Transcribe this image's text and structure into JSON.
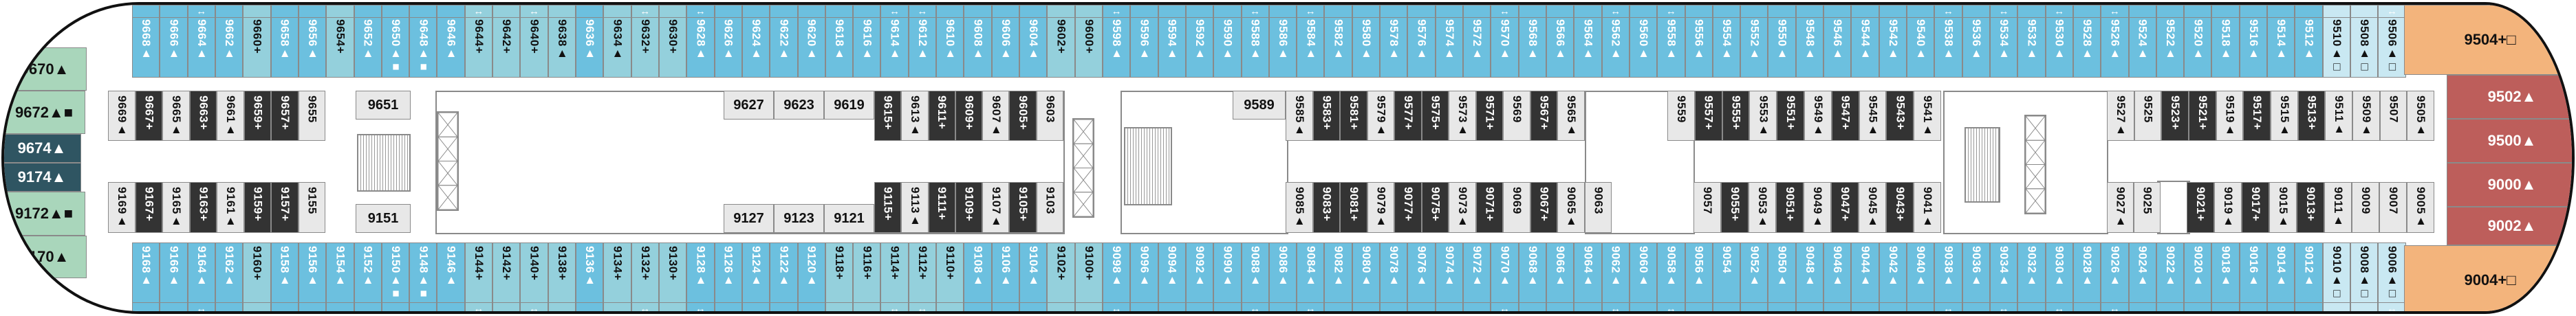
{
  "colors": {
    "balcony": "#6cc0df",
    "balcony_alt": "#94d0dc",
    "balcony_light": "#c9e8f2",
    "inside_dark": "#333333",
    "inside_light": "#e8e8e8",
    "bow_suite": "#a9d6bb",
    "bow_suite_dark": "#2f5562",
    "stern_suite": "#f3b47c",
    "stern_suite_red": "#bd5e5b"
  },
  "bow": [
    [
      "9670▲",
      "green"
    ],
    [
      "9672▲■",
      "green"
    ],
    [
      "9674▲",
      "dark"
    ],
    [
      "9174▲",
      "dark"
    ],
    [
      "9172▲■",
      "green"
    ],
    [
      "9170▲",
      "green"
    ]
  ],
  "stern": [
    [
      "9504+□",
      "orange"
    ],
    [
      "9502▲",
      "red"
    ],
    [
      "9500▲",
      "red"
    ],
    [
      "9000▲",
      "red"
    ],
    [
      "9002▲",
      "red"
    ],
    [
      "9004+□",
      "orange"
    ]
  ],
  "connector_symbol": "↔",
  "outer_top": [
    [
      "9668▲",
      "b"
    ],
    [
      "9666▲",
      "b"
    ],
    [
      "9664▲",
      "b",
      1
    ],
    [
      "9662▲",
      "b"
    ],
    [
      "9660+",
      "t"
    ],
    [
      "9658▲",
      "b"
    ],
    [
      "9656▲",
      "b"
    ],
    [
      "9654+",
      "t"
    ],
    [
      "9652▲",
      "b"
    ],
    [
      "9650▲■",
      "b"
    ],
    [
      "9648▲■",
      "b"
    ],
    [
      "9646▲",
      "b"
    ],
    [
      "9644+",
      "t",
      1
    ],
    [
      "9642+",
      "t"
    ],
    [
      "9640+",
      "t",
      1
    ],
    [
      "9638▲",
      "t"
    ],
    [
      "9636▲",
      "b"
    ],
    [
      "9634▲",
      "t"
    ],
    [
      "9632+",
      "t",
      1
    ],
    [
      "9630+",
      "t"
    ],
    [
      "9628▲",
      "b",
      1
    ],
    [
      "9626▲",
      "b"
    ],
    [
      "9624▲",
      "b"
    ],
    [
      "9622▲",
      "b"
    ],
    [
      "9620▲",
      "b"
    ],
    [
      "9618▲",
      "b"
    ],
    [
      "9616▲",
      "b"
    ],
    [
      "9614▲",
      "b",
      1
    ],
    [
      "9612▲",
      "b",
      1
    ],
    [
      "9610▲",
      "b"
    ],
    [
      "9608▲",
      "b"
    ],
    [
      "9606▲",
      "b"
    ],
    [
      "9604▲",
      "b"
    ],
    [
      "9602+",
      "t"
    ],
    [
      "9600+",
      "t"
    ],
    [
      "9598▲",
      "b",
      1
    ],
    [
      "9596▲",
      "b"
    ],
    [
      "9594▲",
      "b"
    ],
    [
      "9592▲",
      "b"
    ],
    [
      "9590▲",
      "b"
    ],
    [
      "9588▲",
      "b",
      1
    ],
    [
      "9586▲",
      "b"
    ],
    [
      "9584▲",
      "b",
      1
    ],
    [
      "9582▲",
      "b"
    ],
    [
      "9580▲",
      "b"
    ],
    [
      "9578▲",
      "b"
    ],
    [
      "9576▲",
      "b"
    ],
    [
      "9574▲",
      "b"
    ],
    [
      "9572▲",
      "b"
    ],
    [
      "9570▲",
      "b",
      1
    ],
    [
      "9568▲",
      "b"
    ],
    [
      "9566▲",
      "b"
    ],
    [
      "9564▲",
      "b"
    ],
    [
      "9562▲",
      "b",
      1
    ],
    [
      "9560▲",
      "b"
    ],
    [
      "9558▲",
      "b",
      1
    ],
    [
      "9556▲",
      "b"
    ],
    [
      "9554▲",
      "b"
    ],
    [
      "9552▲",
      "b"
    ],
    [
      "9550▲",
      "b"
    ],
    [
      "9548▲",
      "b"
    ],
    [
      "9546▲",
      "b"
    ],
    [
      "9544▲",
      "b"
    ],
    [
      "9542▲",
      "b"
    ],
    [
      "9540▲",
      "b"
    ],
    [
      "9538▲",
      "b",
      1
    ],
    [
      "9536▲",
      "b"
    ],
    [
      "9534▲",
      "b",
      1
    ],
    [
      "9532▲",
      "b"
    ],
    [
      "9530▲",
      "b",
      1
    ],
    [
      "9528▲",
      "b"
    ],
    [
      "9526▲",
      "b",
      1
    ],
    [
      "9524▲",
      "b"
    ],
    [
      "9522▲",
      "b"
    ],
    [
      "9520▲",
      "b"
    ],
    [
      "9518▲",
      "b"
    ],
    [
      "9516▲",
      "b"
    ],
    [
      "9514▲",
      "b"
    ],
    [
      "9512▲",
      "b"
    ],
    [
      "9510▲□",
      "l"
    ],
    [
      "9508▲□",
      "l"
    ],
    [
      "9506▲□",
      "l",
      1
    ]
  ],
  "outer_bottom": [
    [
      "9168▲",
      "b"
    ],
    [
      "9166▲",
      "b"
    ],
    [
      "9164▲",
      "b",
      1
    ],
    [
      "9162▲",
      "b"
    ],
    [
      "9160+",
      "t"
    ],
    [
      "9158▲",
      "b"
    ],
    [
      "9156▲",
      "b"
    ],
    [
      "9154▲",
      "b"
    ],
    [
      "9152▲",
      "b"
    ],
    [
      "9150▲■",
      "b"
    ],
    [
      "9148▲■",
      "b"
    ],
    [
      "9146▲",
      "b"
    ],
    [
      "9144+",
      "t",
      1
    ],
    [
      "9142+",
      "t"
    ],
    [
      "9140+",
      "t",
      1
    ],
    [
      "9138+",
      "t"
    ],
    [
      "9136▲",
      "b"
    ],
    [
      "9134+",
      "t"
    ],
    [
      "9132+",
      "t",
      1
    ],
    [
      "9130+",
      "t"
    ],
    [
      "9128▲",
      "b",
      1
    ],
    [
      "9126▲",
      "b"
    ],
    [
      "9124▲",
      "b"
    ],
    [
      "9122▲",
      "b"
    ],
    [
      "9120▲",
      "b"
    ],
    [
      "9118+",
      "t"
    ],
    [
      "9116+",
      "t"
    ],
    [
      "9114+",
      "t",
      1
    ],
    [
      "9112+",
      "t",
      1
    ],
    [
      "9110+",
      "t"
    ],
    [
      "9108▲",
      "b"
    ],
    [
      "9106▲",
      "b"
    ],
    [
      "9104▲",
      "b"
    ],
    [
      "9102+",
      "t"
    ],
    [
      "9100+",
      "t"
    ],
    [
      "9098▲",
      "b",
      1
    ],
    [
      "9096▲",
      "b"
    ],
    [
      "9094▲",
      "b"
    ],
    [
      "9092▲",
      "b"
    ],
    [
      "9090▲",
      "b"
    ],
    [
      "9088▲",
      "b",
      1
    ],
    [
      "9086▲",
      "b"
    ],
    [
      "9084▲",
      "b",
      1
    ],
    [
      "9082▲",
      "b"
    ],
    [
      "9080▲",
      "b"
    ],
    [
      "9078▲",
      "b"
    ],
    [
      "9076▲",
      "b"
    ],
    [
      "9074▲",
      "b"
    ],
    [
      "9072▲",
      "b"
    ],
    [
      "9070▲",
      "b",
      1
    ],
    [
      "9068▲",
      "b"
    ],
    [
      "9066▲",
      "b"
    ],
    [
      "9064▲",
      "b"
    ],
    [
      "9062▲",
      "b",
      1
    ],
    [
      "9060▲",
      "b"
    ],
    [
      "9058▲",
      "b",
      1
    ],
    [
      "9056▲",
      "b"
    ],
    [
      "9054",
      "b"
    ],
    [
      "9052▲",
      "b"
    ],
    [
      "9050▲",
      "b"
    ],
    [
      "9048▲",
      "b"
    ],
    [
      "9046▲",
      "b"
    ],
    [
      "9044▲",
      "b"
    ],
    [
      "9042▲",
      "b"
    ],
    [
      "9040▲",
      "b"
    ],
    [
      "9038▲",
      "b",
      1
    ],
    [
      "9036▲",
      "b"
    ],
    [
      "9034▲",
      "b",
      1
    ],
    [
      "9032▲",
      "b"
    ],
    [
      "9030▲",
      "b",
      1
    ],
    [
      "9028▲",
      "b"
    ],
    [
      "9026▲",
      "b",
      1
    ],
    [
      "9024▲",
      "b"
    ],
    [
      "9022▲",
      "b"
    ],
    [
      "9020▲",
      "b"
    ],
    [
      "9018▲",
      "b"
    ],
    [
      "9016▲",
      "b"
    ],
    [
      "9014▲",
      "b"
    ],
    [
      "9012▲",
      "b"
    ],
    [
      "9010▲□",
      "l"
    ],
    [
      "9008▲□",
      "l"
    ],
    [
      "9006▲□",
      "l",
      1
    ]
  ],
  "inner_top": [
    [
      [
        "9669▲",
        "g"
      ],
      [
        "9667+",
        "d"
      ],
      [
        "9665▲",
        "g"
      ],
      [
        "9663+",
        "d"
      ],
      [
        "9661▲",
        "g"
      ],
      [
        "9659+",
        "d"
      ],
      [
        "9657+",
        "d"
      ],
      [
        "9655",
        "g"
      ]
    ],
    [
      [
        "9615+",
        "d"
      ],
      [
        "9613▲",
        "g"
      ],
      [
        "9611+",
        "d"
      ],
      [
        "9609+",
        "d"
      ],
      [
        "9607▲",
        "g"
      ],
      [
        "9605+",
        "d"
      ],
      [
        "9603",
        "g"
      ]
    ],
    [
      [
        "9585▲",
        "g"
      ],
      [
        "9583+",
        "d"
      ],
      [
        "9581+",
        "d"
      ],
      [
        "9579▲",
        "g"
      ],
      [
        "9577+",
        "d"
      ],
      [
        "9575+",
        "d"
      ],
      [
        "9573▲",
        "g"
      ],
      [
        "9571+",
        "d"
      ],
      [
        "9569",
        "g"
      ],
      [
        "9567+",
        "d"
      ],
      [
        "9565▲",
        "g"
      ]
    ],
    [
      [
        "9559",
        "g"
      ],
      [
        "9557+",
        "d"
      ],
      [
        "9555+",
        "d"
      ],
      [
        "9553▲",
        "g"
      ],
      [
        "9551+",
        "d"
      ],
      [
        "9549▲",
        "g"
      ],
      [
        "9547+",
        "d"
      ],
      [
        "9545▲",
        "g"
      ],
      [
        "9543+",
        "d"
      ],
      [
        "9541▲",
        "g"
      ]
    ],
    [
      [
        "9527▲",
        "g"
      ],
      [
        "9525",
        "g"
      ],
      [
        "9523+",
        "d"
      ],
      [
        "9521+",
        "d"
      ],
      [
        "9519▲",
        "g"
      ],
      [
        "9517+",
        "d"
      ],
      [
        "9515▲",
        "g"
      ],
      [
        "9513+",
        "d"
      ],
      [
        "9511▲",
        "g"
      ],
      [
        "9509▲",
        "g"
      ],
      [
        "9507",
        "g"
      ],
      [
        "9505▲",
        "g"
      ]
    ]
  ],
  "inner_bottom": [
    [
      [
        "9169▲",
        "g"
      ],
      [
        "9167+",
        "d"
      ],
      [
        "9165▲",
        "g"
      ],
      [
        "9163+",
        "d"
      ],
      [
        "9161▲",
        "g"
      ],
      [
        "9159+",
        "d"
      ],
      [
        "9157+",
        "d"
      ],
      [
        "9155",
        "g"
      ]
    ],
    [
      [
        "9115+",
        "d"
      ],
      [
        "9113▲",
        "g"
      ],
      [
        "9111+",
        "d"
      ],
      [
        "9109+",
        "d"
      ],
      [
        "9107▲",
        "g"
      ],
      [
        "9105+",
        "d"
      ],
      [
        "9103",
        "g"
      ]
    ],
    [
      [
        "9085▲",
        "g"
      ],
      [
        "9083+",
        "d"
      ],
      [
        "9081+",
        "d"
      ],
      [
        "9079▲",
        "g"
      ],
      [
        "9077+",
        "d"
      ],
      [
        "9075+",
        "d"
      ],
      [
        "9073▲",
        "g"
      ],
      [
        "9071+",
        "d"
      ],
      [
        "9069",
        "g"
      ],
      [
        "9067+",
        "d"
      ],
      [
        "9065▲",
        "g"
      ],
      [
        "9063",
        "g"
      ]
    ],
    [
      [
        "9057",
        "g"
      ],
      [
        "9055+",
        "d"
      ],
      [
        "9053▲",
        "g"
      ],
      [
        "9051+",
        "d"
      ],
      [
        "9049▲",
        "g"
      ],
      [
        "9047+",
        "d"
      ],
      [
        "9045▲",
        "g"
      ],
      [
        "9043+",
        "d"
      ],
      [
        "9041▲",
        "g"
      ]
    ],
    [
      [
        "9027▲",
        "g"
      ],
      [
        "9025",
        "g"
      ]
    ],
    [
      [
        "9021+",
        "d"
      ],
      [
        "9019▲",
        "g"
      ],
      [
        "9017+",
        "d"
      ],
      [
        "9015▲",
        "g"
      ],
      [
        "9013+",
        "d"
      ],
      [
        "9011▲",
        "g"
      ],
      [
        "9009",
        "g"
      ],
      [
        "9007",
        "g"
      ],
      [
        "9005▲",
        "g"
      ]
    ]
  ],
  "horizontal_cabins": {
    "top": [
      [
        "9651"
      ],
      [
        "9627",
        "9623",
        "9619"
      ],
      [
        "9589"
      ]
    ],
    "bottom": [
      [
        "9151"
      ],
      [
        "9127",
        "9123",
        "9121"
      ]
    ]
  }
}
